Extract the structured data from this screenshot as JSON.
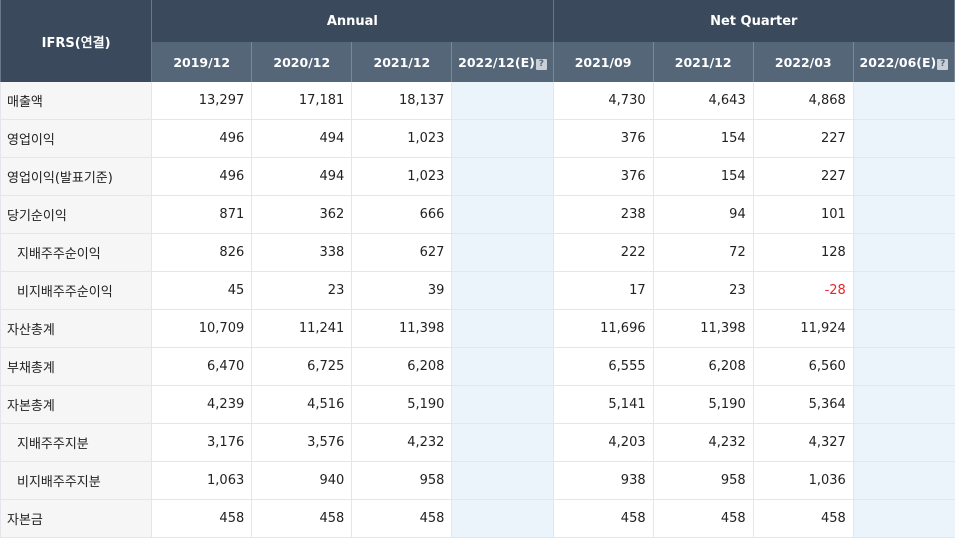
{
  "table": {
    "corner_label": "IFRS(연결)",
    "groups": [
      {
        "label": "Annual"
      },
      {
        "label": "Net Quarter"
      }
    ],
    "columns": [
      "2019/12",
      "2020/12",
      "2021/12",
      "2022/12(E)",
      "2021/09",
      "2021/12",
      "2022/03",
      "2022/06(E)"
    ],
    "estimate_icon": "?",
    "rows": [
      {
        "label": "매출액",
        "indent": false,
        "values": [
          "13,297",
          "17,181",
          "18,137",
          "",
          "4,730",
          "4,643",
          "4,868",
          ""
        ]
      },
      {
        "label": "영업이익",
        "indent": false,
        "values": [
          "496",
          "494",
          "1,023",
          "",
          "376",
          "154",
          "227",
          ""
        ]
      },
      {
        "label": "영업이익(발표기준)",
        "indent": false,
        "values": [
          "496",
          "494",
          "1,023",
          "",
          "376",
          "154",
          "227",
          ""
        ]
      },
      {
        "label": "당기순이익",
        "indent": false,
        "values": [
          "871",
          "362",
          "666",
          "",
          "238",
          "94",
          "101",
          ""
        ]
      },
      {
        "label": "지배주주순이익",
        "indent": true,
        "values": [
          "826",
          "338",
          "627",
          "",
          "222",
          "72",
          "128",
          ""
        ]
      },
      {
        "label": "비지배주주순이익",
        "indent": true,
        "values": [
          "45",
          "23",
          "39",
          "",
          "17",
          "23",
          "-28",
          ""
        ]
      },
      {
        "label": "자산총계",
        "indent": false,
        "values": [
          "10,709",
          "11,241",
          "11,398",
          "",
          "11,696",
          "11,398",
          "11,924",
          ""
        ]
      },
      {
        "label": "부채총계",
        "indent": false,
        "values": [
          "6,470",
          "6,725",
          "6,208",
          "",
          "6,555",
          "6,208",
          "6,560",
          ""
        ]
      },
      {
        "label": "자본총계",
        "indent": false,
        "values": [
          "4,239",
          "4,516",
          "5,190",
          "",
          "5,141",
          "5,190",
          "5,364",
          ""
        ]
      },
      {
        "label": "지배주주지분",
        "indent": true,
        "values": [
          "3,176",
          "3,576",
          "4,232",
          "",
          "4,203",
          "4,232",
          "4,327",
          ""
        ]
      },
      {
        "label": "비지배주주지분",
        "indent": true,
        "values": [
          "1,063",
          "940",
          "958",
          "",
          "938",
          "958",
          "1,036",
          ""
        ]
      },
      {
        "label": "자본금",
        "indent": false,
        "values": [
          "458",
          "458",
          "458",
          "",
          "458",
          "458",
          "458",
          ""
        ]
      }
    ]
  },
  "colors": {
    "header_dark": "#3a4a5c",
    "header_mid": "#556679",
    "estimate_bg": "#eaf4fa",
    "label_bg": "#f6f6f6",
    "negative": "#e8262b"
  }
}
